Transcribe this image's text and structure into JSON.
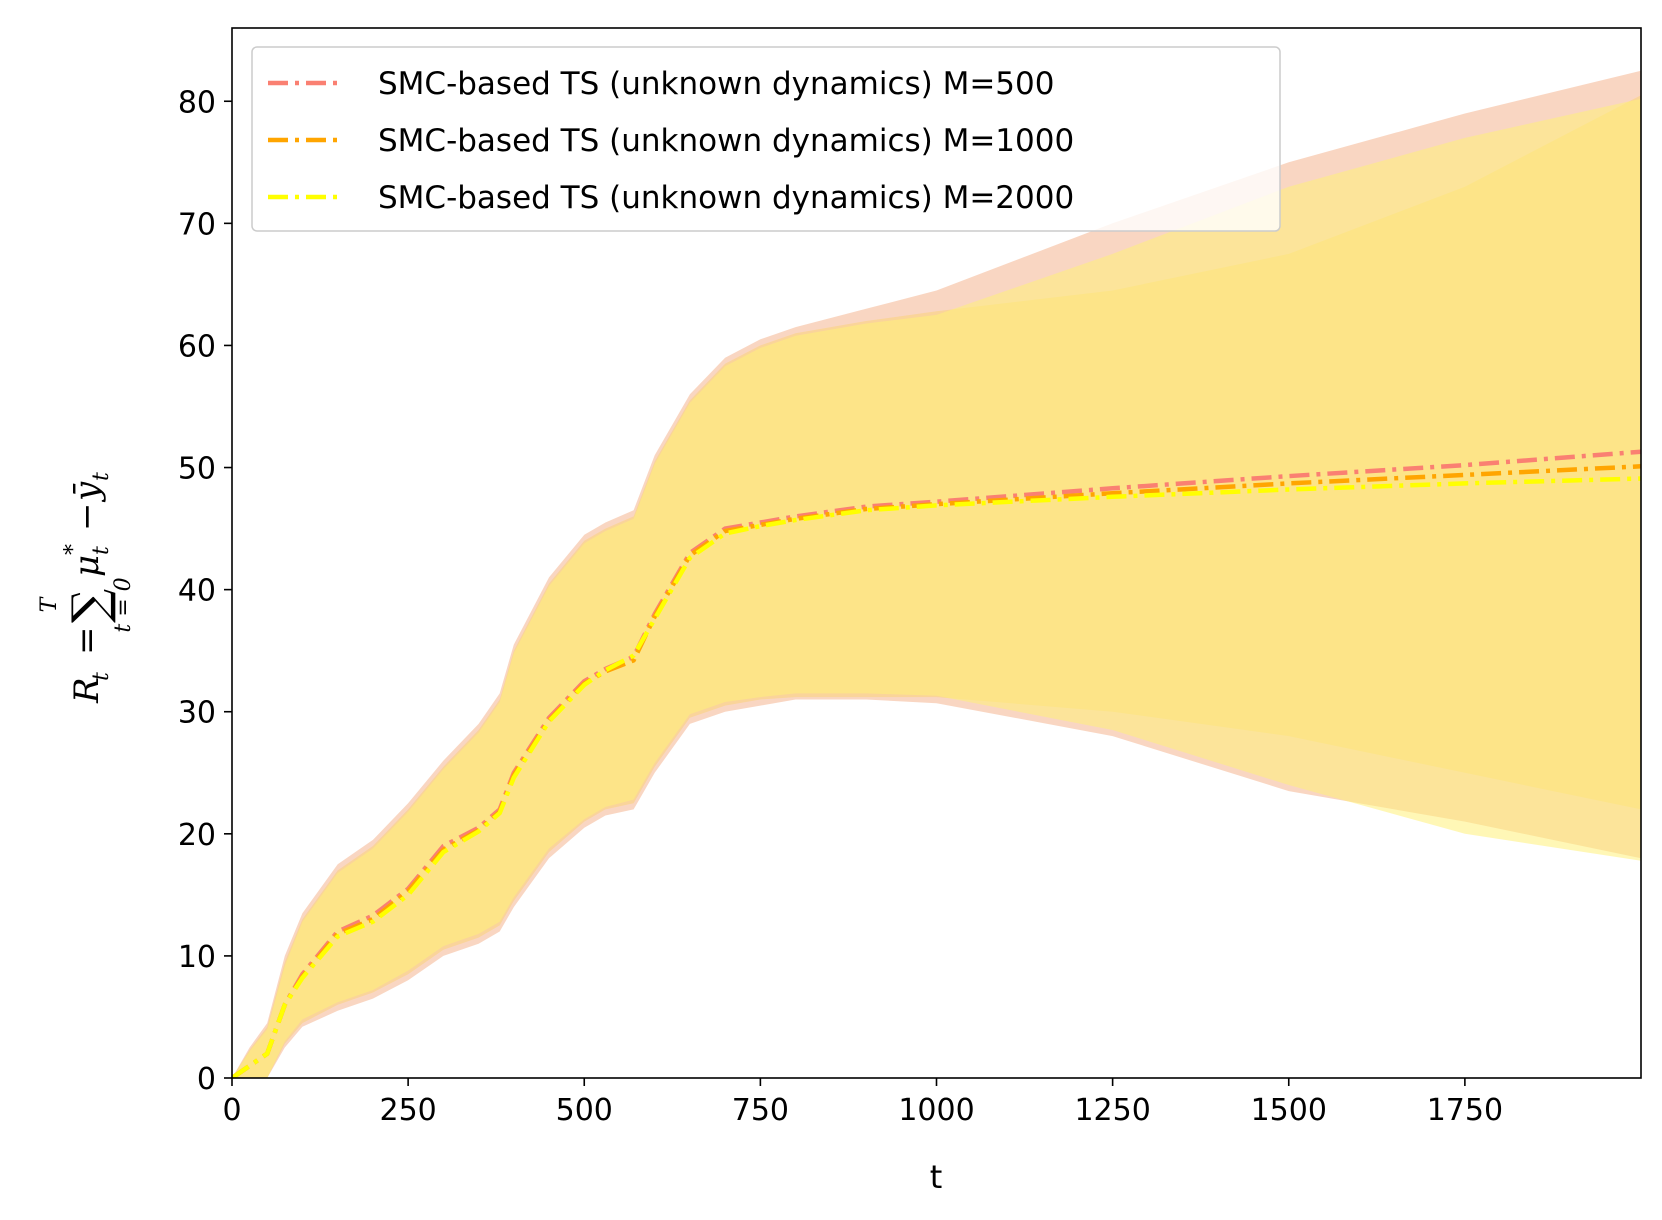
{
  "chart_data": {
    "type": "line",
    "title": "",
    "xlabel": "t",
    "ylabel": "R_t = ∑_{t=0}^{T} μ_t^* − ȳ_t",
    "ylabel_parts": {
      "R": "R",
      "t": "t",
      "eq": "=",
      "sum": "∑",
      "top": "T",
      "bottom": "t = 0",
      "mu": "μ",
      "star": "*",
      "minus": "−",
      "y": "ȳ"
    },
    "xlim": [
      0,
      2000
    ],
    "ylim": [
      0,
      86
    ],
    "xticks": [
      0,
      250,
      500,
      750,
      1000,
      1250,
      1500,
      1750
    ],
    "yticks": [
      0,
      10,
      20,
      30,
      40,
      50,
      60,
      70,
      80
    ],
    "legend_position": "top-left",
    "series": [
      {
        "name": "SMC-based TS (unknown dynamics) M=500",
        "color": "#fa8072",
        "band_color": "#f4b58f",
        "x": [
          0,
          25,
          50,
          75,
          100,
          150,
          200,
          250,
          300,
          350,
          380,
          400,
          450,
          500,
          530,
          570,
          600,
          650,
          700,
          750,
          800,
          900,
          1000,
          1250,
          1500,
          1750,
          2000
        ],
        "mean": [
          0,
          1,
          2,
          6,
          8.5,
          12,
          13.3,
          15.5,
          19,
          20.5,
          22,
          25,
          29.5,
          32.5,
          33.5,
          34.5,
          38,
          43,
          45,
          45.5,
          46,
          46.8,
          47.2,
          48.3,
          49.3,
          50.2,
          51.3
        ],
        "lower": [
          0,
          0,
          0,
          2.5,
          4.2,
          5.5,
          6.5,
          8,
          10,
          11,
          12,
          14,
          18,
          20.5,
          21.5,
          22,
          25,
          29,
          30,
          30.5,
          31,
          31,
          30.7,
          28,
          23.5,
          21,
          18
        ],
        "upper": [
          0,
          2.5,
          4.5,
          10,
          13.5,
          17.5,
          19.5,
          22.5,
          26,
          29,
          31.5,
          35.5,
          41,
          44.5,
          45.5,
          46.5,
          51,
          56,
          59,
          60.5,
          61.5,
          63,
          64.5,
          70,
          75,
          79,
          82.5
        ]
      },
      {
        "name": "SMC-based TS (unknown dynamics) M=1000",
        "color": "#ffa500",
        "band_color": "#fcd47a",
        "x": [
          0,
          25,
          50,
          75,
          100,
          150,
          200,
          250,
          300,
          350,
          380,
          400,
          450,
          500,
          530,
          570,
          600,
          650,
          700,
          750,
          800,
          900,
          1000,
          1250,
          1500,
          1750,
          2000
        ],
        "mean": [
          0,
          1,
          2,
          6,
          8.3,
          11.8,
          13,
          15.3,
          18.7,
          20.3,
          21.8,
          24.8,
          29.3,
          32.3,
          33.3,
          34.2,
          37.8,
          42.8,
          44.8,
          45.3,
          45.8,
          46.6,
          47,
          47.9,
          48.7,
          49.4,
          50.1
        ],
        "lower": [
          0,
          0,
          0,
          2.8,
          4.5,
          6,
          7,
          8.5,
          10.5,
          11.5,
          12.5,
          14.5,
          18.5,
          21,
          22,
          22.5,
          25.5,
          29.5,
          30.5,
          31,
          31.2,
          31.2,
          31.2,
          30,
          28,
          25,
          22
        ],
        "upper": [
          0,
          2.3,
          4.2,
          9.5,
          13,
          17,
          19,
          22,
          25.5,
          28.5,
          31,
          35,
          40.5,
          44,
          45,
          46,
          50.5,
          55.5,
          58.5,
          60,
          61,
          62,
          62.8,
          64.5,
          67.5,
          73,
          80.5
        ]
      },
      {
        "name": "SMC-based TS (unknown dynamics) M=2000",
        "color": "#ffff00",
        "band_color": "#fff07a",
        "x": [
          0,
          25,
          50,
          75,
          100,
          150,
          200,
          250,
          300,
          350,
          380,
          400,
          450,
          500,
          530,
          570,
          600,
          650,
          700,
          750,
          800,
          900,
          1000,
          1250,
          1500,
          1750,
          2000
        ],
        "mean": [
          0,
          1,
          2,
          6,
          8.2,
          11.6,
          12.8,
          15,
          18.5,
          20.2,
          21.7,
          24.6,
          29.2,
          32.2,
          33.4,
          34.6,
          37.6,
          42.6,
          44.6,
          45.2,
          45.7,
          46.5,
          46.9,
          47.6,
          48.2,
          48.7,
          49.1
        ],
        "lower": [
          0,
          0,
          0,
          3,
          4.8,
          6.2,
          7.2,
          8.8,
          10.8,
          11.8,
          12.8,
          14.8,
          18.8,
          21.2,
          22.2,
          22.8,
          25.8,
          29.8,
          30.8,
          31.2,
          31.5,
          31.5,
          31.3,
          28.5,
          24,
          20,
          17.8
        ],
        "upper": [
          0,
          2.2,
          4,
          9.2,
          12.8,
          16.8,
          18.8,
          21.8,
          25.3,
          28.3,
          30.8,
          34.8,
          40.3,
          43.8,
          44.8,
          45.8,
          50.3,
          55.3,
          58.3,
          59.8,
          60.8,
          61.8,
          62.5,
          67.5,
          73,
          77,
          80.2
        ]
      }
    ]
  }
}
